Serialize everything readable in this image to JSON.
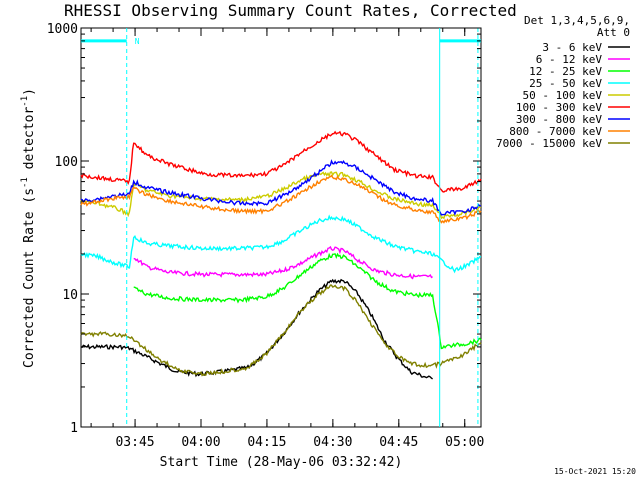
{
  "chart_data": {
    "type": "line",
    "title": "RHESSI Observing Summary Count Rates, Corrected",
    "xlabel": "Start Time (28-May-06 03:32:42)",
    "ylabel_main": "Corrected Count Rate (s",
    "ylabel_sup1": "-1",
    "ylabel_mid": " detector",
    "ylabel_sup2": "-1",
    "ylabel_end": ")",
    "yscale": "log",
    "ylim": [
      1,
      1000
    ],
    "xlim_minutes": [
      0,
      91
    ],
    "y_ticks": [
      {
        "value": 1,
        "label": "1"
      },
      {
        "value": 10,
        "label": "10"
      },
      {
        "value": 100,
        "label": "100"
      },
      {
        "value": 1000,
        "label": "1000"
      }
    ],
    "x_ticks": [
      {
        "minutes": 12.3,
        "label": "03:45"
      },
      {
        "minutes": 27.3,
        "label": "04:00"
      },
      {
        "minutes": 42.3,
        "label": "04:15"
      },
      {
        "minutes": 57.3,
        "label": "04:30"
      },
      {
        "minutes": 72.3,
        "label": "04:45"
      },
      {
        "minutes": 87.3,
        "label": "05:00"
      }
    ],
    "legend_header": [
      "Det 1,3,4,5,6,9,",
      "Att 0"
    ],
    "series": [
      {
        "name": "3 - 6 keV",
        "color": "#000000",
        "points": [
          [
            0,
            4
          ],
          [
            5,
            4
          ],
          [
            7,
            4
          ],
          [
            9,
            4
          ],
          [
            11,
            3.9
          ],
          [
            14,
            3.5
          ],
          [
            18,
            3
          ],
          [
            22,
            2.6
          ],
          [
            27,
            2.5
          ],
          [
            32,
            2.6
          ],
          [
            38,
            2.8
          ],
          [
            42,
            3.5
          ],
          [
            46,
            5
          ],
          [
            50,
            7.5
          ],
          [
            54,
            10.5
          ],
          [
            57,
            12.5
          ],
          [
            60,
            12.5
          ],
          [
            63,
            10
          ],
          [
            66,
            7
          ],
          [
            69,
            4.5
          ],
          [
            72,
            3.3
          ],
          [
            75,
            2.6
          ],
          [
            78,
            2.4
          ],
          [
            80,
            2.3
          ]
        ]
      },
      {
        "name": "6 - 12 keV",
        "color": "#ff00ff",
        "points": [
          [
            12,
            19
          ],
          [
            15,
            16
          ],
          [
            20,
            14.5
          ],
          [
            28,
            14
          ],
          [
            36,
            14
          ],
          [
            42,
            14
          ],
          [
            46,
            15
          ],
          [
            50,
            17
          ],
          [
            54,
            20
          ],
          [
            57,
            22
          ],
          [
            60,
            21
          ],
          [
            63,
            18
          ],
          [
            67,
            15
          ],
          [
            71,
            14
          ],
          [
            76,
            13.5
          ],
          [
            80,
            13.5
          ]
        ]
      },
      {
        "name": "12 - 25 keV",
        "color": "#00ff00",
        "points": [
          [
            12,
            11
          ],
          [
            15,
            10
          ],
          [
            20,
            9.3
          ],
          [
            28,
            9
          ],
          [
            36,
            9
          ],
          [
            42,
            9.5
          ],
          [
            46,
            11
          ],
          [
            50,
            14
          ],
          [
            54,
            17.5
          ],
          [
            57,
            19.5
          ],
          [
            60,
            19
          ],
          [
            63,
            16
          ],
          [
            67,
            12.5
          ],
          [
            71,
            10.5
          ],
          [
            76,
            9.8
          ],
          [
            80,
            9.8
          ],
          [
            82,
            4
          ],
          [
            87,
            4.2
          ],
          [
            91,
            4.5
          ]
        ]
      },
      {
        "name": "25 - 50 keV",
        "color": "#00ffff",
        "points": [
          [
            0,
            20
          ],
          [
            4,
            19
          ],
          [
            8,
            17
          ],
          [
            11,
            16
          ],
          [
            12,
            27
          ],
          [
            15,
            24
          ],
          [
            20,
            23
          ],
          [
            28,
            22
          ],
          [
            36,
            22
          ],
          [
            42,
            22.5
          ],
          [
            46,
            25
          ],
          [
            50,
            30
          ],
          [
            54,
            35.5
          ],
          [
            57,
            37.5
          ],
          [
            60,
            36.5
          ],
          [
            63,
            32
          ],
          [
            67,
            26.5
          ],
          [
            71,
            23
          ],
          [
            76,
            21
          ],
          [
            80,
            20
          ],
          [
            85,
            15
          ],
          [
            88,
            16.5
          ],
          [
            91,
            19
          ]
        ]
      },
      {
        "name": "50 - 100 keV",
        "color": "#cccc00",
        "points": [
          [
            0,
            50
          ],
          [
            4,
            48
          ],
          [
            8,
            44
          ],
          [
            11,
            40
          ],
          [
            12,
            68
          ],
          [
            15,
            60
          ],
          [
            20,
            55
          ],
          [
            28,
            52
          ],
          [
            36,
            51
          ],
          [
            42,
            54
          ],
          [
            46,
            61
          ],
          [
            50,
            72
          ],
          [
            54,
            79
          ],
          [
            57,
            80
          ],
          [
            60,
            79
          ],
          [
            63,
            71
          ],
          [
            67,
            60
          ],
          [
            71,
            52
          ],
          [
            76,
            48
          ],
          [
            80,
            46
          ],
          [
            82,
            38
          ],
          [
            87,
            40
          ],
          [
            91,
            45
          ]
        ]
      },
      {
        "name": "100 - 300 keV",
        "color": "#ff0000",
        "points": [
          [
            0,
            78
          ],
          [
            4,
            75
          ],
          [
            8,
            72
          ],
          [
            11,
            70
          ],
          [
            12,
            140
          ],
          [
            15,
            110
          ],
          [
            20,
            95
          ],
          [
            28,
            80
          ],
          [
            36,
            77
          ],
          [
            42,
            80
          ],
          [
            46,
            92
          ],
          [
            50,
            115
          ],
          [
            54,
            140
          ],
          [
            57,
            160
          ],
          [
            60,
            160
          ],
          [
            63,
            140
          ],
          [
            67,
            110
          ],
          [
            71,
            87
          ],
          [
            76,
            77
          ],
          [
            80,
            75
          ],
          [
            82,
            60
          ],
          [
            87,
            62
          ],
          [
            91,
            73
          ]
        ]
      },
      {
        "name": "300 - 800 keV",
        "color": "#0000ff",
        "points": [
          [
            0,
            50
          ],
          [
            4,
            52
          ],
          [
            8,
            55
          ],
          [
            11,
            56
          ],
          [
            12,
            70
          ],
          [
            15,
            63
          ],
          [
            20,
            58
          ],
          [
            28,
            52
          ],
          [
            36,
            48
          ],
          [
            42,
            48
          ],
          [
            46,
            55
          ],
          [
            50,
            66
          ],
          [
            54,
            82
          ],
          [
            57,
            97
          ],
          [
            60,
            97
          ],
          [
            63,
            88
          ],
          [
            67,
            72
          ],
          [
            71,
            59
          ],
          [
            76,
            52
          ],
          [
            80,
            50
          ],
          [
            82,
            40
          ],
          [
            87,
            42
          ],
          [
            91,
            46
          ]
        ]
      },
      {
        "name": "800 - 7000 keV",
        "color": "#ff8000",
        "points": [
          [
            0,
            47
          ],
          [
            4,
            50
          ],
          [
            8,
            53
          ],
          [
            11,
            54
          ],
          [
            12,
            62
          ],
          [
            15,
            56
          ],
          [
            20,
            50
          ],
          [
            28,
            45
          ],
          [
            36,
            42
          ],
          [
            42,
            42
          ],
          [
            46,
            48
          ],
          [
            50,
            57
          ],
          [
            54,
            70
          ],
          [
            57,
            75
          ],
          [
            60,
            73
          ],
          [
            63,
            66
          ],
          [
            67,
            55
          ],
          [
            71,
            47
          ],
          [
            76,
            43
          ],
          [
            80,
            41
          ],
          [
            82,
            35
          ],
          [
            87,
            37
          ],
          [
            91,
            42
          ]
        ]
      },
      {
        "name": "7000 - 15000 keV",
        "color": "#808000",
        "points": [
          [
            0,
            5
          ],
          [
            5,
            5
          ],
          [
            9,
            4.9
          ],
          [
            11,
            4.8
          ],
          [
            14,
            4
          ],
          [
            18,
            3.2
          ],
          [
            22,
            2.7
          ],
          [
            27,
            2.5
          ],
          [
            32,
            2.6
          ],
          [
            38,
            2.8
          ],
          [
            42,
            3.5
          ],
          [
            46,
            5
          ],
          [
            50,
            7.5
          ],
          [
            54,
            10
          ],
          [
            57,
            11.5
          ],
          [
            60,
            11
          ],
          [
            63,
            8.5
          ],
          [
            66,
            6
          ],
          [
            69,
            4.3
          ],
          [
            72,
            3.4
          ],
          [
            75,
            3
          ],
          [
            78,
            2.9
          ],
          [
            80,
            2.9
          ],
          [
            82,
            3
          ],
          [
            87,
            3.5
          ],
          [
            91,
            4.3
          ]
        ]
      }
    ],
    "attenuator_segments": [
      {
        "start_minutes": 0,
        "end_minutes": 10.4,
        "value": 800
      },
      {
        "start_minutes": 81.6,
        "end_minutes": 91,
        "value": 800
      }
    ],
    "vertical_markers_minutes": [
      10.4,
      81.6,
      90.3
    ],
    "marker_label": "N",
    "marker_color": "#00ffff"
  },
  "footer_timestamp": "15-Oct-2021 15:20"
}
